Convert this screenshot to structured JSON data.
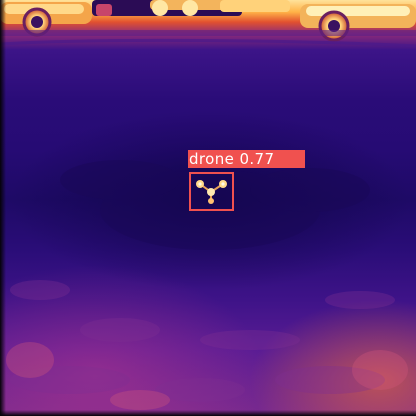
{
  "detection": {
    "label": "drone 0.77",
    "box_color": "#f0514f"
  },
  "scene": {
    "palette": [
      "#1e0a66",
      "#3c1488",
      "#8a2a7a",
      "#e2512f",
      "#ffb347",
      "#ffe29a"
    ]
  }
}
